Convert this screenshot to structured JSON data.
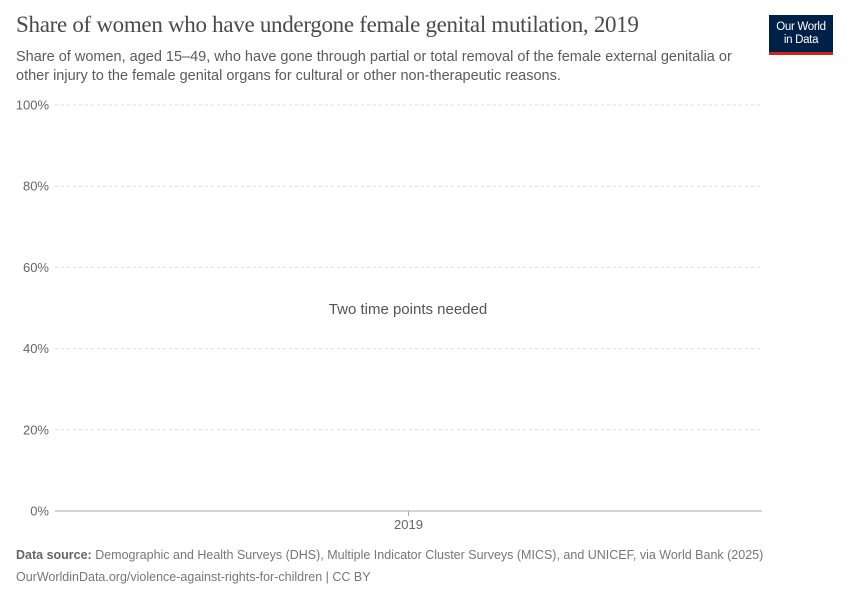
{
  "header": {
    "title": "Share of women who have undergone female genital mutilation, 2019",
    "subtitle": "Share of women, aged 15–49, who have gone through partial or total removal of the female external genitalia or other injury to the female genital organs for cultural or other non-therapeutic reasons.",
    "logo_line1": "Our World",
    "logo_line2": "in Data"
  },
  "chart_data": {
    "type": "line",
    "title": "Share of women who have undergone female genital mutilation, 2019",
    "x_ticks": [
      "2019"
    ],
    "y_ticks": [
      "0%",
      "20%",
      "40%",
      "60%",
      "80%",
      "100%"
    ],
    "y_tick_values": [
      0,
      20,
      40,
      60,
      80,
      100
    ],
    "ylim": [
      0,
      100
    ],
    "grid": true,
    "series": [],
    "message": "Two time points needed"
  },
  "footer": {
    "source_label": "Data source:",
    "source_text": " Demographic and Health Surveys (DHS), Multiple Indicator Cluster Surveys (MICS), and UNICEF, via World Bank (2025)",
    "url_text": "OurWorldinData.org/violence-against-rights-for-children | CC BY"
  },
  "colors": {
    "logo_bg": "#002147",
    "logo_accent": "#ce261e"
  }
}
